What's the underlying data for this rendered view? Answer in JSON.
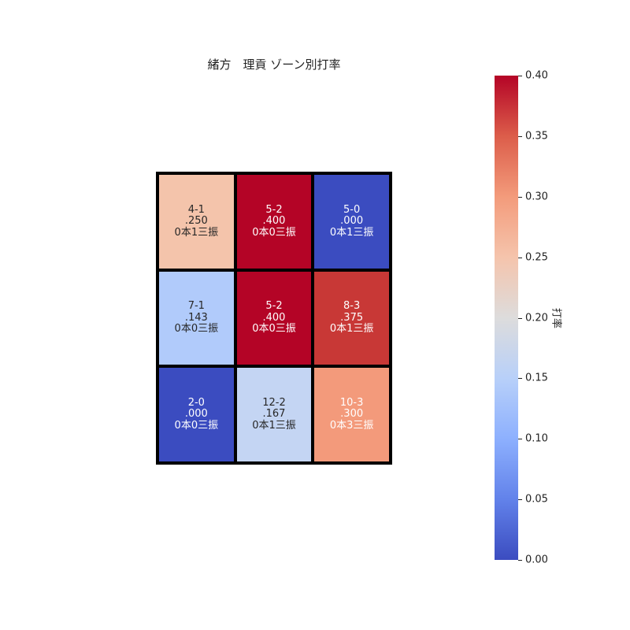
{
  "chart_data": {
    "type": "heatmap",
    "title": "緒方　理貢 ゾーン別打率",
    "rows": 3,
    "cols": 3,
    "cells": [
      [
        {
          "count": "4-1",
          "avg": ".250",
          "detail": "0本1三振",
          "value": 0.25,
          "color": "#f4c4ab"
        },
        {
          "count": "5-2",
          "avg": ".400",
          "detail": "0本0三振",
          "value": 0.4,
          "color": "#b40426"
        },
        {
          "count": "5-0",
          "avg": ".000",
          "detail": "0本1三振",
          "value": 0.0,
          "color": "#3b4cc0"
        }
      ],
      [
        {
          "count": "7-1",
          "avg": ".143",
          "detail": "0本0三振",
          "value": 0.143,
          "color": "#b1cbfb"
        },
        {
          "count": "5-2",
          "avg": ".400",
          "detail": "0本0三振",
          "value": 0.4,
          "color": "#b40426"
        },
        {
          "count": "8-3",
          "avg": ".375",
          "detail": "0本1三振",
          "value": 0.375,
          "color": "#c83836"
        }
      ],
      [
        {
          "count": "2-0",
          "avg": ".000",
          "detail": "0本0三振",
          "value": 0.0,
          "color": "#3b4cc0"
        },
        {
          "count": "12-2",
          "avg": ".167",
          "detail": "0本1三振",
          "value": 0.167,
          "color": "#c4d5f3"
        },
        {
          "count": "10-3",
          "avg": ".300",
          "detail": "0本3三振",
          "value": 0.3,
          "color": "#f39a7b"
        }
      ]
    ],
    "colorbar": {
      "label": "打率",
      "colormap": "coolwarm",
      "range": [
        0.0,
        0.4
      ],
      "ticks": [
        "0.00",
        "0.05",
        "0.10",
        "0.15",
        "0.20",
        "0.25",
        "0.30",
        "0.35",
        "0.40"
      ]
    }
  }
}
